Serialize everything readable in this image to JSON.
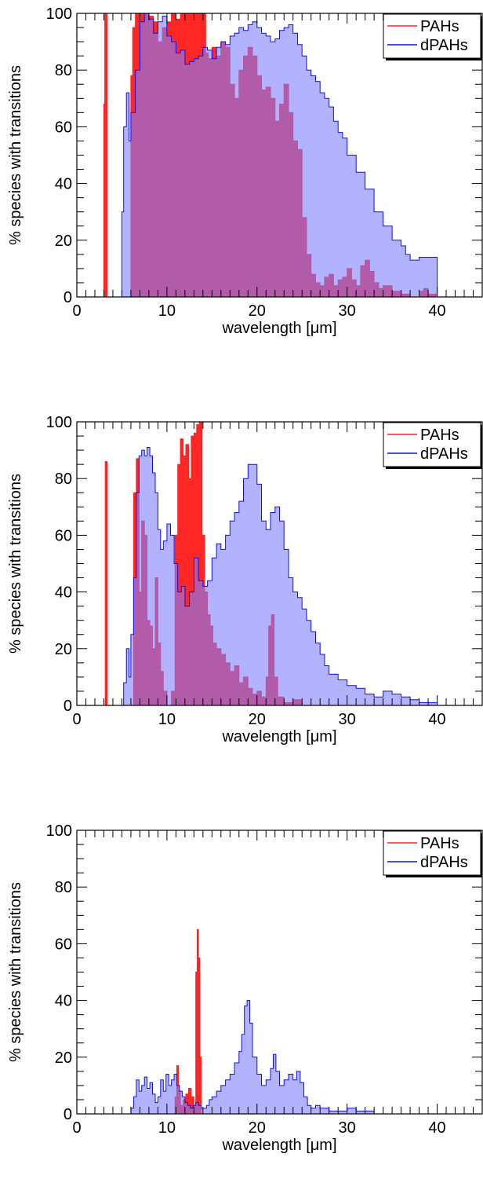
{
  "figure": {
    "colors": {
      "pahs": "#ff2020",
      "dpahs": "#1010e8",
      "pahs_fill": "#ff0000",
      "dpahs_fill": "#7f7fff",
      "overlap": "#8b1a60"
    }
  },
  "chart_data": [
    {
      "type": "area",
      "xlabel": "wavelength [μm]",
      "ylabel": "% species with transitions",
      "xlim": [
        0,
        45
      ],
      "ylim": [
        0,
        100
      ],
      "xticks": [
        "0",
        "10",
        "20",
        "30",
        "40"
      ],
      "yticks": [
        "0",
        "20",
        "40",
        "60",
        "80",
        "100"
      ],
      "legend": {
        "position": "top-right",
        "entries": [
          "PAHs",
          "dPAHs"
        ]
      },
      "grid": false,
      "series": [
        {
          "name": "PAHs",
          "color": "#ff2020",
          "x": [
            2.8,
            3.0,
            3.1,
            3.25,
            3.35,
            3.5,
            5.8,
            6.0,
            6.2,
            6.5,
            7.0,
            7.5,
            8.0,
            8.5,
            9.0,
            9.5,
            10.0,
            10.5,
            11.0,
            11.5,
            12.0,
            12.5,
            13.0,
            13.5,
            14.0,
            14.3,
            14.6,
            15.0,
            15.5,
            16.0,
            16.5,
            17.0,
            17.5,
            18.0,
            18.5,
            19.0,
            19.5,
            20.0,
            20.5,
            21.0,
            21.5,
            22.0,
            22.5,
            23.0,
            23.5,
            24.0,
            24.5,
            25.0,
            25.5,
            26.0,
            26.5,
            27.0,
            27.5,
            28.0,
            28.5,
            29.0,
            29.5,
            30.0,
            30.5,
            31.0,
            31.5,
            32.0,
            32.5,
            33.0,
            33.5,
            34.0,
            35.0,
            36.0,
            37.0,
            38.0,
            38.5,
            39.0,
            40.0
          ],
          "y": [
            0,
            68,
            100,
            100,
            0,
            0,
            0,
            78,
            95,
            100,
            100,
            100,
            99,
            97,
            90,
            95,
            97,
            100,
            98,
            100,
            100,
            100,
            100,
            100,
            100,
            86,
            84,
            88,
            85,
            90,
            88,
            75,
            70,
            80,
            85,
            88,
            85,
            78,
            73,
            74,
            70,
            62,
            68,
            75,
            65,
            55,
            52,
            28,
            15,
            8,
            5,
            4,
            7,
            8,
            4,
            6,
            7,
            10,
            6,
            4,
            11,
            13,
            9,
            5,
            3,
            4,
            2,
            1,
            0,
            2,
            3,
            1,
            0
          ]
        },
        {
          "name": "dPAHs",
          "color": "#1010e8",
          "x": [
            4.8,
            5.0,
            5.2,
            5.5,
            5.8,
            6.0,
            6.5,
            7.0,
            7.5,
            8.0,
            8.5,
            9.0,
            9.5,
            10.0,
            10.5,
            11.0,
            11.5,
            12.0,
            12.5,
            13.0,
            13.5,
            14.0,
            14.5,
            15.0,
            15.5,
            16.0,
            16.5,
            17.0,
            17.5,
            18.0,
            18.5,
            19.0,
            19.5,
            20.0,
            20.5,
            21.0,
            21.5,
            22.0,
            22.5,
            23.0,
            23.5,
            24.0,
            24.5,
            25.0,
            25.5,
            26.0,
            26.5,
            27.0,
            27.5,
            28.0,
            28.5,
            29.0,
            29.5,
            30.0,
            31.0,
            32.0,
            33.0,
            34.0,
            35.0,
            36.0,
            36.5,
            37.0,
            38.0,
            39.0,
            40.0
          ],
          "y": [
            0,
            30,
            60,
            72,
            55,
            65,
            80,
            97,
            100,
            98,
            93,
            97,
            99,
            92,
            90,
            86,
            87,
            82,
            83,
            84,
            85,
            88,
            87,
            84,
            88,
            90,
            89,
            92,
            93,
            95,
            94,
            96,
            97,
            95,
            93,
            92,
            90,
            91,
            94,
            95,
            96,
            93,
            89,
            85,
            80,
            78,
            76,
            72,
            70,
            67,
            62,
            58,
            56,
            50,
            44,
            38,
            30,
            25,
            20,
            18,
            15,
            13,
            14,
            14,
            13
          ]
        }
      ]
    },
    {
      "type": "area",
      "xlabel": "wavelength [μm]",
      "ylabel": "% species with transitions",
      "xlim": [
        0,
        45
      ],
      "ylim": [
        0,
        100
      ],
      "xticks": [
        "0",
        "10",
        "20",
        "30",
        "40"
      ],
      "yticks": [
        "0",
        "20",
        "40",
        "60",
        "80",
        "100"
      ],
      "legend": {
        "position": "top-right",
        "entries": [
          "PAHs",
          "dPAHs"
        ]
      },
      "grid": false,
      "series": [
        {
          "name": "PAHs",
          "color": "#ff2020",
          "x": [
            3.1,
            3.15,
            3.25,
            3.35,
            6.0,
            6.3,
            6.6,
            6.9,
            7.2,
            7.5,
            7.8,
            8.1,
            8.4,
            8.7,
            9.0,
            9.3,
            9.6,
            10.0,
            10.5,
            10.9,
            11.2,
            11.5,
            11.8,
            12.1,
            12.4,
            12.7,
            13.0,
            13.3,
            13.6,
            13.9,
            14.2,
            14.5,
            14.8,
            15.1,
            15.5,
            16.0,
            16.5,
            17.0,
            17.5,
            18.0,
            18.5,
            19.0,
            19.5,
            20.0,
            20.5,
            21.0,
            21.3,
            21.6,
            21.9,
            22.3,
            23.0,
            24.0,
            25.0
          ],
          "y": [
            0,
            86,
            86,
            0,
            0,
            75,
            87,
            40,
            65,
            60,
            30,
            28,
            20,
            45,
            22,
            12,
            5,
            0,
            5,
            60,
            85,
            94,
            88,
            92,
            80,
            95,
            96,
            99,
            100,
            60,
            40,
            32,
            28,
            22,
            20,
            18,
            15,
            12,
            14,
            8,
            10,
            6,
            4,
            5,
            3,
            10,
            28,
            32,
            10,
            3,
            1,
            2,
            0
          ]
        },
        {
          "name": "dPAHs",
          "color": "#1010e8",
          "x": [
            4.5,
            5.0,
            5.2,
            5.5,
            5.8,
            6.0,
            6.3,
            6.6,
            6.9,
            7.2,
            7.5,
            7.8,
            8.1,
            8.4,
            8.7,
            9.0,
            9.3,
            9.6,
            10.0,
            10.4,
            10.8,
            11.2,
            11.6,
            12.0,
            12.5,
            13.0,
            13.5,
            14.0,
            14.5,
            15.0,
            15.5,
            16.0,
            16.5,
            17.0,
            17.5,
            18.0,
            18.5,
            19.0,
            19.5,
            20.0,
            20.5,
            21.0,
            21.5,
            22.0,
            22.5,
            23.0,
            23.5,
            24.0,
            24.5,
            25.0,
            25.5,
            26.0,
            26.5,
            27.0,
            27.5,
            28.0,
            29.0,
            30.0,
            31.0,
            32.0,
            33.0,
            34.0,
            35.0,
            36.0,
            37.0,
            38.0,
            39.0,
            40.0
          ],
          "y": [
            0,
            0,
            8,
            20,
            10,
            25,
            45,
            75,
            88,
            90,
            88,
            91,
            88,
            82,
            75,
            62,
            55,
            58,
            64,
            60,
            50,
            40,
            42,
            35,
            40,
            52,
            44,
            42,
            44,
            52,
            57,
            55,
            60,
            65,
            68,
            72,
            80,
            85,
            85,
            78,
            65,
            62,
            68,
            70,
            65,
            55,
            45,
            40,
            38,
            34,
            30,
            26,
            22,
            18,
            14,
            11,
            9,
            7,
            6,
            4,
            3,
            5,
            4,
            3,
            2,
            1,
            1,
            0
          ]
        }
      ]
    },
    {
      "type": "area",
      "xlabel": "wavelength [μm]",
      "ylabel": "% species with transitions",
      "xlim": [
        0,
        45
      ],
      "ylim": [
        0,
        100
      ],
      "xticks": [
        "0",
        "10",
        "20",
        "30",
        "40"
      ],
      "yticks": [
        "0",
        "20",
        "40",
        "60",
        "80",
        "100"
      ],
      "legend": {
        "position": "top-right",
        "entries": [
          "PAHs",
          "dPAHs"
        ]
      },
      "grid": false,
      "series": [
        {
          "name": "PAHs",
          "color": "#ff2020",
          "x": [
            10.6,
            10.9,
            11.1,
            11.3,
            11.5,
            11.8,
            12.1,
            12.4,
            12.7,
            13.0,
            13.2,
            13.35,
            13.5,
            13.65,
            13.8,
            14.0
          ],
          "y": [
            0,
            6,
            17,
            8,
            3,
            5,
            7,
            9,
            6,
            3,
            50,
            65,
            55,
            20,
            0,
            0
          ]
        },
        {
          "name": "dPAHs",
          "color": "#1010e8",
          "x": [
            5.5,
            6.0,
            6.3,
            6.6,
            6.9,
            7.2,
            7.5,
            7.8,
            8.1,
            8.4,
            8.7,
            9.0,
            9.3,
            9.6,
            9.9,
            10.2,
            10.5,
            10.8,
            11.1,
            11.4,
            11.7,
            12.0,
            12.3,
            12.6,
            12.9,
            13.2,
            13.5,
            13.8,
            14.1,
            14.4,
            14.7,
            15.0,
            15.5,
            16.0,
            16.5,
            17.0,
            17.5,
            18.0,
            18.3,
            18.6,
            18.9,
            19.2,
            19.5,
            20.0,
            20.5,
            21.0,
            21.5,
            21.8,
            22.1,
            22.5,
            23.0,
            23.5,
            24.0,
            24.4,
            24.8,
            25.2,
            25.6,
            26.0,
            26.5,
            27.0,
            28.0,
            29.0,
            30.0,
            31.0,
            32.0,
            33.0
          ],
          "y": [
            0,
            2,
            6,
            12,
            8,
            10,
            13,
            9,
            11,
            7,
            4,
            6,
            12,
            8,
            14,
            10,
            12,
            14,
            10,
            8,
            6,
            4,
            3,
            2,
            3,
            4,
            3,
            2,
            2,
            3,
            5,
            6,
            8,
            10,
            12,
            14,
            18,
            22,
            28,
            38,
            40,
            32,
            20,
            14,
            10,
            12,
            16,
            21,
            15,
            10,
            12,
            14,
            12,
            15,
            11,
            6,
            3,
            2,
            3,
            2,
            1,
            1,
            2,
            1,
            1,
            0
          ]
        }
      ]
    }
  ]
}
